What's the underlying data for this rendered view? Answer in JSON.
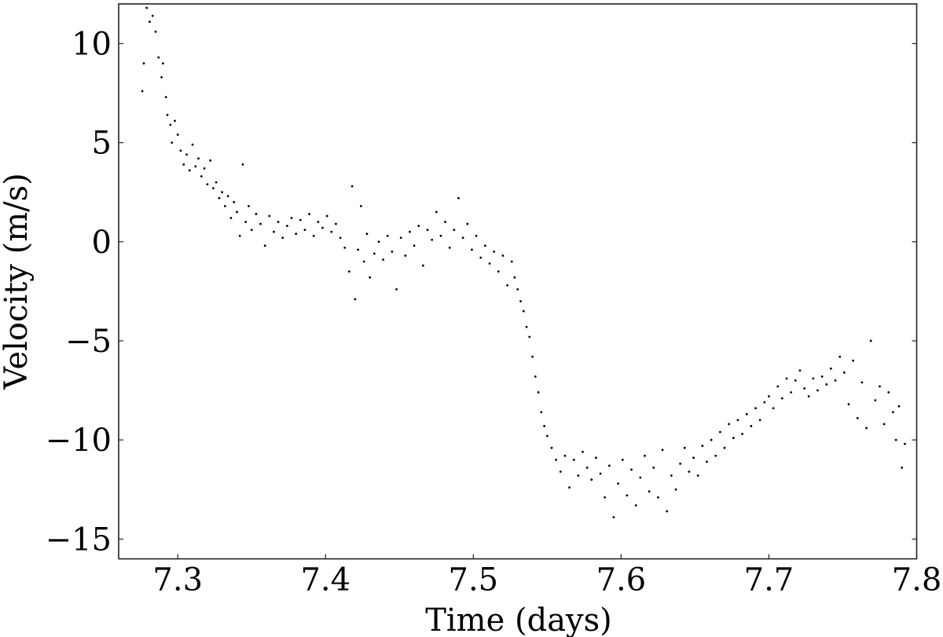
{
  "chart_data": {
    "type": "scatter",
    "title": "",
    "xlabel": "Time (days)",
    "ylabel": "Velocity (m/s)",
    "xlim": [
      7.26,
      7.8
    ],
    "ylim": [
      -16,
      12
    ],
    "xticks": [
      7.3,
      7.4,
      7.5,
      7.6,
      7.7,
      7.8
    ],
    "xtick_labels": [
      "7.3",
      "7.4",
      "7.5",
      "7.6",
      "7.7",
      "7.8"
    ],
    "yticks": [
      10,
      5,
      0,
      -5,
      -10,
      -15
    ],
    "ytick_labels": [
      "10",
      "5",
      "0",
      "−5",
      "−10",
      "−15"
    ],
    "grid": false,
    "marker_color": "#000000",
    "points": [
      [
        7.276,
        7.6
      ],
      [
        7.277,
        9.0
      ],
      [
        7.279,
        11.8
      ],
      [
        7.281,
        11.1
      ],
      [
        7.283,
        11.4
      ],
      [
        7.285,
        10.6
      ],
      [
        7.287,
        9.3
      ],
      [
        7.289,
        8.3
      ],
      [
        7.29,
        9.0
      ],
      [
        7.292,
        7.3
      ],
      [
        7.293,
        6.4
      ],
      [
        7.295,
        5.9
      ],
      [
        7.296,
        5.0
      ],
      [
        7.298,
        6.1
      ],
      [
        7.3,
        5.4
      ],
      [
        7.302,
        4.6
      ],
      [
        7.304,
        3.9
      ],
      [
        7.306,
        4.4
      ],
      [
        7.308,
        3.6
      ],
      [
        7.31,
        4.9
      ],
      [
        7.312,
        3.8
      ],
      [
        7.314,
        4.2
      ],
      [
        7.316,
        3.3
      ],
      [
        7.318,
        3.7
      ],
      [
        7.32,
        2.9
      ],
      [
        7.322,
        4.1
      ],
      [
        7.324,
        2.7
      ],
      [
        7.326,
        3.0
      ],
      [
        7.328,
        2.2
      ],
      [
        7.33,
        2.5
      ],
      [
        7.332,
        1.8
      ],
      [
        7.334,
        2.3
      ],
      [
        7.336,
        1.2
      ],
      [
        7.338,
        2.0
      ],
      [
        7.34,
        1.5
      ],
      [
        7.342,
        0.3
      ],
      [
        7.344,
        3.9
      ],
      [
        7.346,
        1.0
      ],
      [
        7.348,
        1.8
      ],
      [
        7.35,
        0.6
      ],
      [
        7.353,
        1.4
      ],
      [
        7.356,
        0.9
      ],
      [
        7.359,
        -0.2
      ],
      [
        7.362,
        1.3
      ],
      [
        7.365,
        0.5
      ],
      [
        7.368,
        1.0
      ],
      [
        7.371,
        0.2
      ],
      [
        7.374,
        0.8
      ],
      [
        7.377,
        1.2
      ],
      [
        7.38,
        0.4
      ],
      [
        7.383,
        1.1
      ],
      [
        7.386,
        0.6
      ],
      [
        7.389,
        1.4
      ],
      [
        7.392,
        0.3
      ],
      [
        7.395,
        1.0
      ],
      [
        7.398,
        0.7
      ],
      [
        7.401,
        1.3
      ],
      [
        7.404,
        0.5
      ],
      [
        7.407,
        0.9
      ],
      [
        7.41,
        0.2
      ],
      [
        7.413,
        -0.3
      ],
      [
        7.416,
        -1.5
      ],
      [
        7.418,
        2.8
      ],
      [
        7.42,
        -2.9
      ],
      [
        7.422,
        -0.4
      ],
      [
        7.424,
        1.8
      ],
      [
        7.426,
        -1.0
      ],
      [
        7.428,
        0.4
      ],
      [
        7.43,
        -1.8
      ],
      [
        7.433,
        -0.6
      ],
      [
        7.436,
        0.0
      ],
      [
        7.439,
        -0.9
      ],
      [
        7.442,
        0.3
      ],
      [
        7.445,
        -0.5
      ],
      [
        7.448,
        -2.4
      ],
      [
        7.451,
        0.2
      ],
      [
        7.454,
        -0.7
      ],
      [
        7.457,
        0.5
      ],
      [
        7.46,
        -0.2
      ],
      [
        7.463,
        0.8
      ],
      [
        7.466,
        -1.2
      ],
      [
        7.469,
        0.6
      ],
      [
        7.472,
        0.1
      ],
      [
        7.475,
        1.5
      ],
      [
        7.478,
        0.3
      ],
      [
        7.481,
        1.0
      ],
      [
        7.484,
        -0.3
      ],
      [
        7.487,
        0.6
      ],
      [
        7.49,
        2.2
      ],
      [
        7.493,
        0.2
      ],
      [
        7.496,
        0.9
      ],
      [
        7.499,
        -0.4
      ],
      [
        7.502,
        0.3
      ],
      [
        7.505,
        -0.8
      ],
      [
        7.508,
        -0.2
      ],
      [
        7.511,
        -1.1
      ],
      [
        7.514,
        -0.5
      ],
      [
        7.517,
        -1.5
      ],
      [
        7.52,
        -0.7
      ],
      [
        7.523,
        -2.2
      ],
      [
        7.526,
        -1.0
      ],
      [
        7.528,
        -1.8
      ],
      [
        7.53,
        -2.4
      ],
      [
        7.532,
        -3.0
      ],
      [
        7.534,
        -3.5
      ],
      [
        7.536,
        -4.3
      ],
      [
        7.538,
        -4.8
      ],
      [
        7.54,
        -5.8
      ],
      [
        7.542,
        -6.8
      ],
      [
        7.544,
        -7.6
      ],
      [
        7.546,
        -8.6
      ],
      [
        7.548,
        -9.3
      ],
      [
        7.55,
        -9.8
      ],
      [
        7.553,
        -10.4
      ],
      [
        7.556,
        -11.0
      ],
      [
        7.559,
        -11.6
      ],
      [
        7.562,
        -10.8
      ],
      [
        7.565,
        -12.4
      ],
      [
        7.568,
        -11.0
      ],
      [
        7.571,
        -11.8
      ],
      [
        7.574,
        -10.6
      ],
      [
        7.577,
        -11.4
      ],
      [
        7.58,
        -12.0
      ],
      [
        7.583,
        -10.9
      ],
      [
        7.586,
        -11.7
      ],
      [
        7.589,
        -12.9
      ],
      [
        7.592,
        -11.3
      ],
      [
        7.595,
        -13.9
      ],
      [
        7.598,
        -12.2
      ],
      [
        7.601,
        -11.0
      ],
      [
        7.604,
        -12.8
      ],
      [
        7.607,
        -11.5
      ],
      [
        7.61,
        -13.3
      ],
      [
        7.613,
        -11.9
      ],
      [
        7.616,
        -10.8
      ],
      [
        7.619,
        -12.6
      ],
      [
        7.622,
        -11.4
      ],
      [
        7.625,
        -12.9
      ],
      [
        7.628,
        -10.5
      ],
      [
        7.631,
        -13.6
      ],
      [
        7.634,
        -11.8
      ],
      [
        7.637,
        -12.5
      ],
      [
        7.64,
        -11.2
      ],
      [
        7.643,
        -10.4
      ],
      [
        7.646,
        -11.6
      ],
      [
        7.649,
        -10.9
      ],
      [
        7.652,
        -11.8
      ],
      [
        7.655,
        -10.3
      ],
      [
        7.658,
        -11.1
      ],
      [
        7.661,
        -10.0
      ],
      [
        7.664,
        -10.8
      ],
      [
        7.667,
        -9.6
      ],
      [
        7.67,
        -10.4
      ],
      [
        7.673,
        -9.2
      ],
      [
        7.676,
        -9.9
      ],
      [
        7.679,
        -9.0
      ],
      [
        7.682,
        -9.7
      ],
      [
        7.685,
        -8.7
      ],
      [
        7.688,
        -9.3
      ],
      [
        7.691,
        -8.4
      ],
      [
        7.694,
        -9.0
      ],
      [
        7.697,
        -8.1
      ],
      [
        7.7,
        -7.8
      ],
      [
        7.703,
        -8.4
      ],
      [
        7.706,
        -7.3
      ],
      [
        7.709,
        -7.9
      ],
      [
        7.712,
        -6.9
      ],
      [
        7.715,
        -7.6
      ],
      [
        7.718,
        -7.0
      ],
      [
        7.721,
        -6.5
      ],
      [
        7.724,
        -7.4
      ],
      [
        7.727,
        -7.8
      ],
      [
        7.73,
        -6.9
      ],
      [
        7.733,
        -7.5
      ],
      [
        7.736,
        -6.8
      ],
      [
        7.739,
        -7.2
      ],
      [
        7.742,
        -6.4
      ],
      [
        7.745,
        -7.0
      ],
      [
        7.748,
        -5.8
      ],
      [
        7.751,
        -6.6
      ],
      [
        7.754,
        -8.2
      ],
      [
        7.757,
        -6.0
      ],
      [
        7.76,
        -8.9
      ],
      [
        7.763,
        -7.1
      ],
      [
        7.766,
        -9.4
      ],
      [
        7.769,
        -5.0
      ],
      [
        7.772,
        -8.0
      ],
      [
        7.775,
        -7.3
      ],
      [
        7.778,
        -9.2
      ],
      [
        7.781,
        -7.6
      ],
      [
        7.784,
        -8.6
      ],
      [
        7.786,
        -10.0
      ],
      [
        7.788,
        -8.3
      ],
      [
        7.79,
        -11.4
      ],
      [
        7.792,
        -10.2
      ]
    ]
  }
}
